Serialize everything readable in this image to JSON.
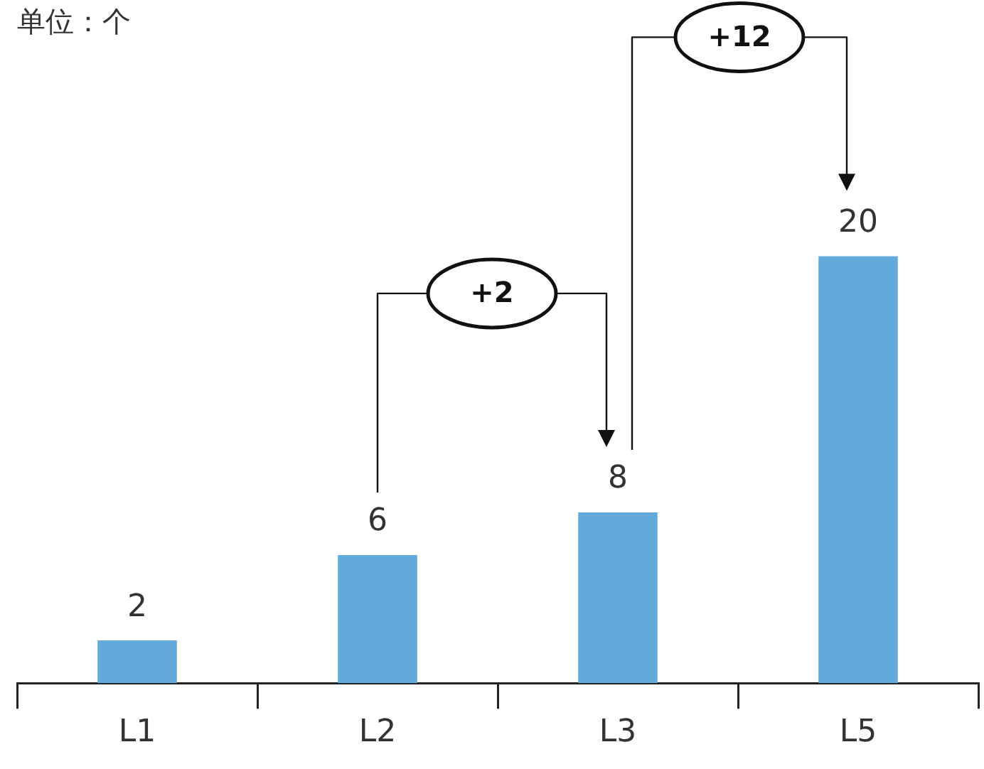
{
  "chart_data": {
    "type": "bar",
    "title": "单位：个",
    "categories": [
      "L1",
      "L2",
      "L3",
      "L5"
    ],
    "values": [
      2,
      6,
      8,
      20
    ],
    "color": "#62aad9",
    "data_labels": true,
    "grid": false,
    "legend": false,
    "annotations": [
      "+2",
      "+12"
    ]
  }
}
